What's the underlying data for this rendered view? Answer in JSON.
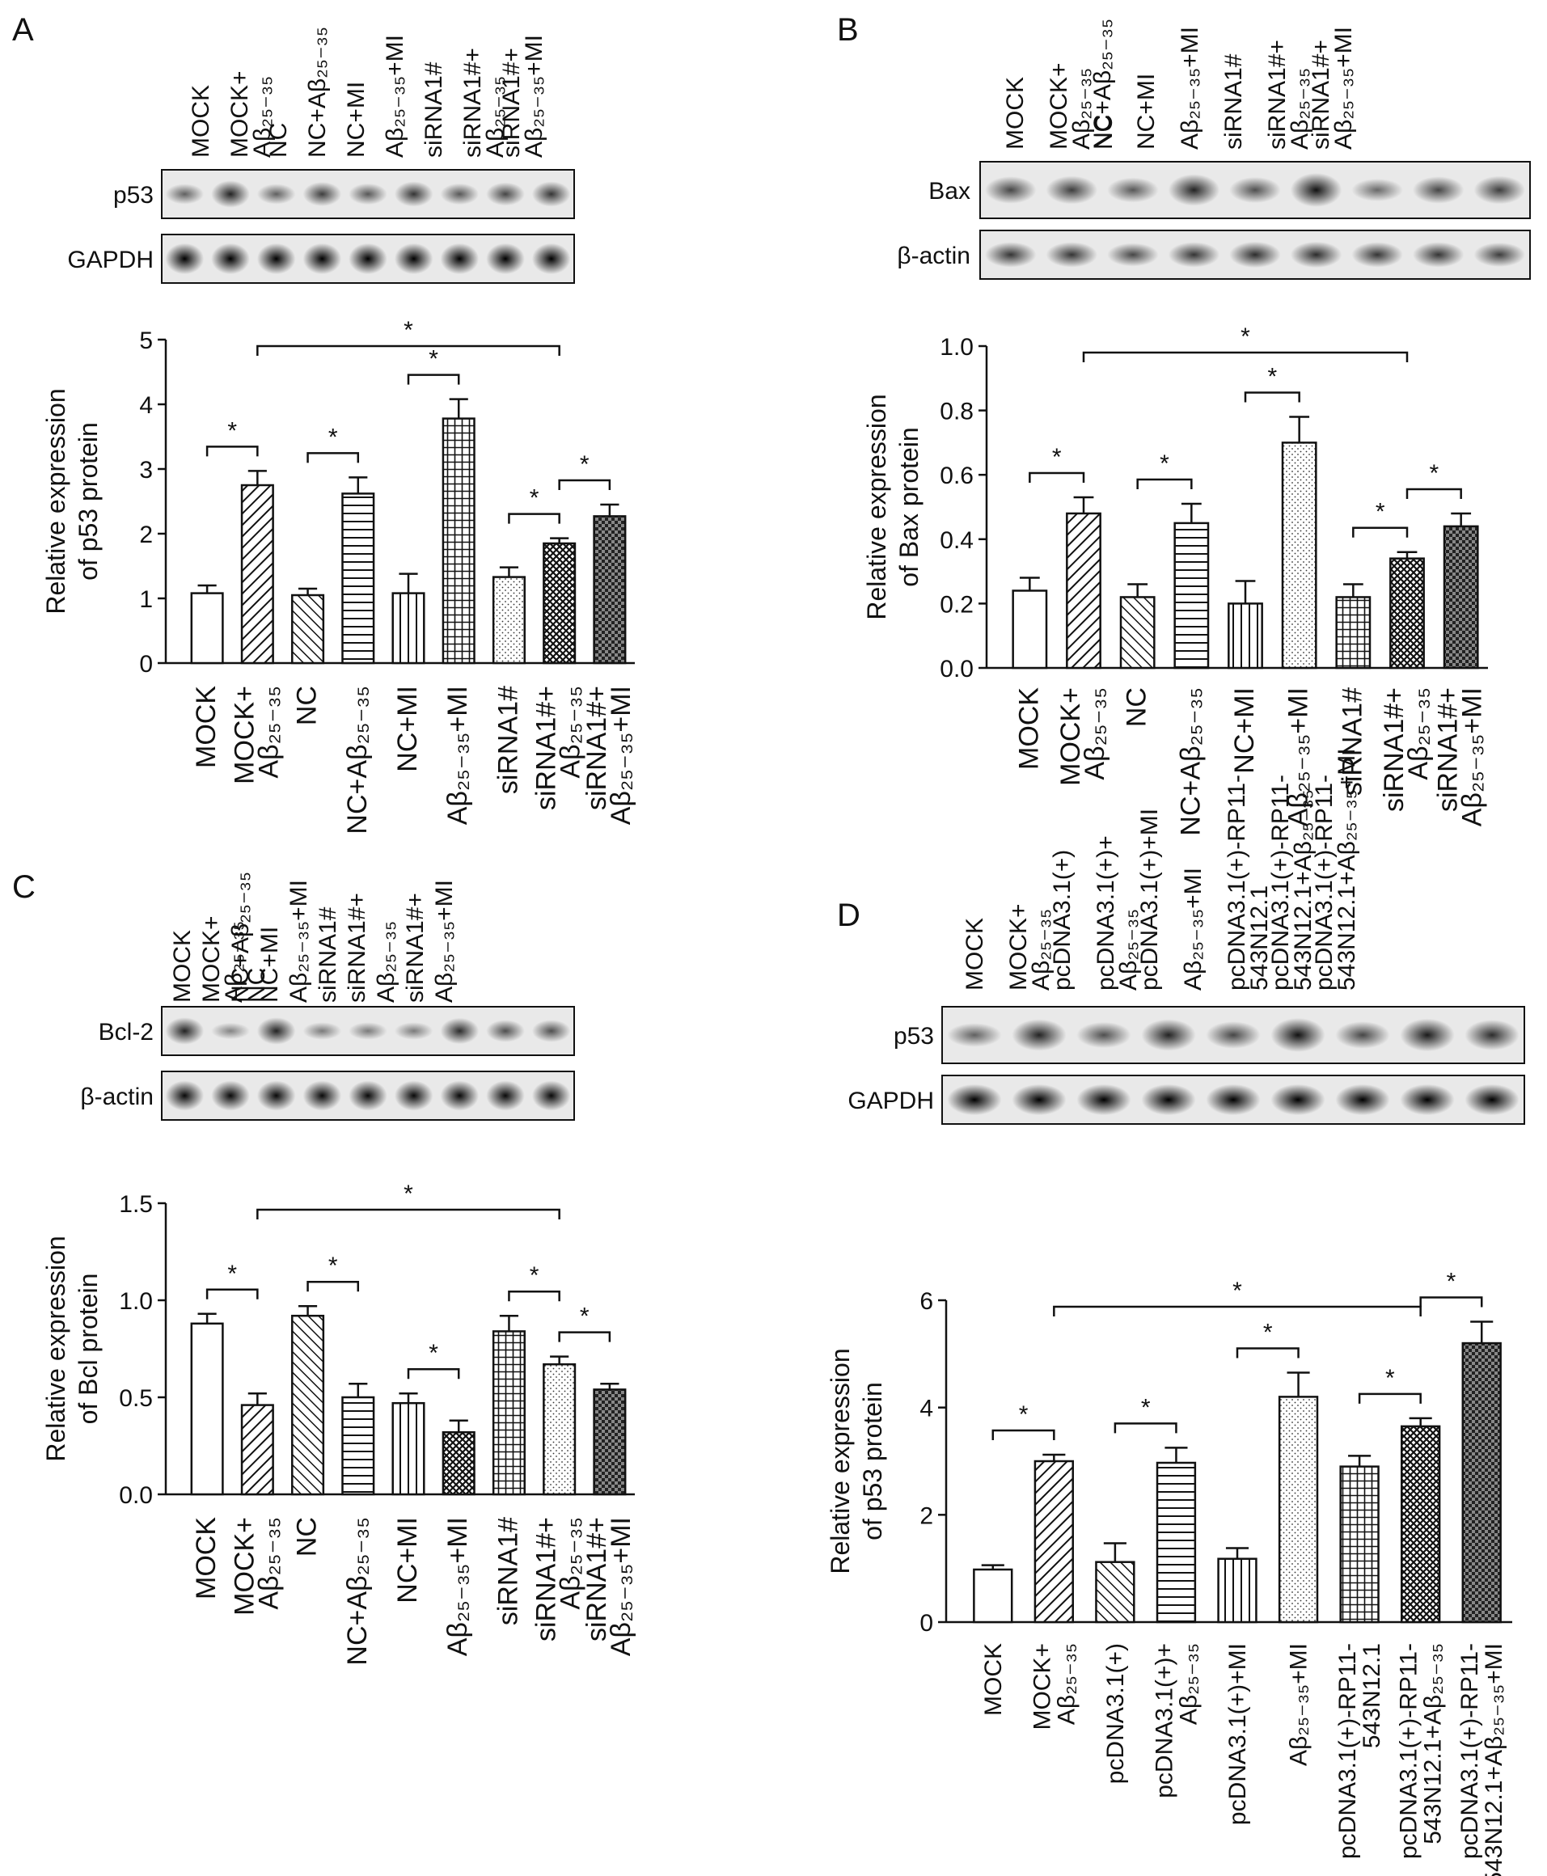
{
  "panels": [
    {
      "id": "A",
      "label": "A",
      "lanes": [
        "MOCK",
        "MOCK+ Aβ25-35",
        "NC",
        "NC+Aβ25-35",
        "NC+MI",
        "Aβ25-35+MI",
        "siRNA1#",
        "siRNA1#+ Aβ25-35",
        "siRNA1#+ Aβ25-35+MI"
      ],
      "top_lane_labels": [
        "MOCK",
        "MOCK+",
        "Aβ₂₅₋₃₅",
        "NC",
        "NC+Aβ₂₅₋₃₅",
        "NC+MI",
        "Aβ₂₅₋₃₅+MI",
        "siRNA1#",
        "siRNA1#+",
        "Aβ₂₅₋₃₅",
        "siRNA1#+",
        "Aβ₂₅₋₃₅+MI"
      ],
      "blot_rows": [
        {
          "label": "p53",
          "intensity": [
            0.45,
            0.8,
            0.45,
            0.65,
            0.5,
            0.7,
            0.5,
            0.6,
            0.7
          ]
        },
        {
          "label": "GAPDH",
          "intensity": [
            1,
            1,
            1,
            1,
            1,
            1,
            1,
            1,
            1
          ]
        }
      ],
      "chart_data": {
        "type": "bar",
        "ylabel": [
          "Relative expression",
          "of p53 protein"
        ],
        "ylim": [
          0,
          5
        ],
        "yticks": [
          "0",
          "1",
          "2",
          "3",
          "4",
          "5"
        ],
        "categories": [
          "MOCK",
          "MOCK+ Aβ25-35",
          "NC",
          "NC+Aβ25-35",
          "NC+MI",
          "Aβ25-35+MI",
          "siRNA1#",
          "siRNA1#+ Aβ25-35",
          "siRNA1#+ Aβ25-35+MI"
        ],
        "values": [
          1.08,
          2.75,
          1.05,
          2.62,
          1.08,
          3.78,
          1.33,
          1.85,
          2.27
        ],
        "errors": [
          0.12,
          0.22,
          0.1,
          0.25,
          0.3,
          0.3,
          0.15,
          0.08,
          0.18
        ],
        "patterns": [
          "none",
          "diag",
          "hatch",
          "horiz",
          "vert",
          "grid",
          "dots",
          "cross",
          "checks"
        ],
        "xtick_labels": [
          "MOCK",
          "MOCK+",
          "Aβ₂₅₋₃₅",
          "NC",
          "NC+Aβ₂₅₋₃₅",
          "NC+MI",
          "Aβ₂₅₋₃₅+MI",
          "siRNA1#",
          "siRNA1#+",
          "Aβ₂₅₋₃₅",
          "siRNA1#+",
          "Aβ₂₅₋₃₅+MI"
        ],
        "significance": [
          {
            "from": 0,
            "to": 1,
            "label": "*"
          },
          {
            "from": 2,
            "to": 3,
            "label": "*"
          },
          {
            "from": 4,
            "to": 5,
            "label": "*"
          },
          {
            "from": 6,
            "to": 7,
            "label": "*"
          },
          {
            "from": 7,
            "to": 8,
            "label": "*"
          },
          {
            "from": 1,
            "to": 7,
            "label": "*"
          }
        ]
      }
    },
    {
      "id": "B",
      "label": "B",
      "lanes": [
        "MOCK",
        "MOCK+ Aβ25-35",
        "NC",
        "NC+Aβ25-35",
        "NC+MI",
        "Aβ25-35+MI",
        "siRNA1#",
        "siRNA1#+ Aβ25-35",
        "siRNA1#+ Aβ25-35+MI"
      ],
      "top_lane_labels": [
        "MOCK",
        "MOCK+",
        "Aβ₂₅₋₃₅",
        "NC",
        "NC+Aβ₂₅₋₃₅",
        "NC+MI",
        "Aβ₂₅₋₃₅+MI",
        "siRNA1#",
        "siRNA1#+",
        "Aβ₂₅₋₃₅",
        "siRNA1#+",
        "Aβ₂₅₋₃₅+MI"
      ],
      "blot_rows": [
        {
          "label": "Bax",
          "intensity": [
            0.6,
            0.65,
            0.5,
            0.8,
            0.55,
            0.9,
            0.4,
            0.6,
            0.65
          ]
        },
        {
          "label": "β-actin",
          "intensity": [
            0.7,
            0.7,
            0.6,
            0.7,
            0.75,
            0.75,
            0.7,
            0.7,
            0.65
          ]
        }
      ],
      "chart_data": {
        "type": "bar",
        "ylabel": [
          "Relative expression",
          "of Bax protein"
        ],
        "ylim": [
          0,
          1.0
        ],
        "yticks": [
          "0.0",
          "0.2",
          "0.4",
          "0.6",
          "0.8",
          "1.0"
        ],
        "categories": [
          "MOCK",
          "MOCK+ Aβ25-35",
          "NC",
          "NC+Aβ25-35",
          "NC+MI",
          "Aβ25-35+MI",
          "siRNA1#",
          "siRNA1#+ Aβ25-35",
          "siRNA1#+ Aβ25-35+MI"
        ],
        "values": [
          0.24,
          0.48,
          0.22,
          0.45,
          0.2,
          0.7,
          0.22,
          0.34,
          0.44
        ],
        "errors": [
          0.04,
          0.05,
          0.04,
          0.06,
          0.07,
          0.08,
          0.04,
          0.02,
          0.04
        ],
        "patterns": [
          "none",
          "diag",
          "hatch",
          "horiz",
          "vert",
          "dots",
          "grid",
          "cross",
          "checks"
        ],
        "xtick_labels": [
          "MOCK",
          "MOCK+",
          "Aβ₂₅₋₃₅",
          "NC",
          "NC+Aβ₂₅₋₃₅",
          "NC+MI",
          "Aβ₂₅₋₃₅+MI",
          "siRNA1#",
          "siRNA1#+",
          "Aβ₂₅₋₃₅",
          "siRNA1#+",
          "Aβ₂₅₋₃₅+MI"
        ],
        "significance": [
          {
            "from": 0,
            "to": 1,
            "label": "*"
          },
          {
            "from": 2,
            "to": 3,
            "label": "*"
          },
          {
            "from": 4,
            "to": 5,
            "label": "*"
          },
          {
            "from": 6,
            "to": 7,
            "label": "*"
          },
          {
            "from": 7,
            "to": 8,
            "label": "*"
          },
          {
            "from": 1,
            "to": 7,
            "label": "*"
          }
        ]
      }
    },
    {
      "id": "C",
      "label": "C",
      "lanes": [
        "MOCK",
        "MOCK+ Aβ25-35",
        "NC",
        "NC+Aβ25-35",
        "NC+MI",
        "Aβ25-35+MI",
        "siRNA1#",
        "siRNA1#+ Aβ25-35",
        "siRNA1#+ Aβ25-35+MI"
      ],
      "top_lane_labels": [
        "MOCK",
        "MOCK+",
        "Aβ₂₅₋₃₅",
        "NC",
        "NC+Aβ₂₅₋₃₅",
        "NC+MI",
        "Aβ₂₅₋₃₅+MI",
        "siRNA1#",
        "siRNA1#+",
        "Aβ₂₅₋₃₅",
        "siRNA1#+",
        "Aβ₂₅₋₃₅+MI"
      ],
      "blot_rows": [
        {
          "label": "Bcl-2",
          "intensity": [
            0.8,
            0.25,
            0.8,
            0.3,
            0.3,
            0.3,
            0.75,
            0.55,
            0.55
          ]
        },
        {
          "label": "β-actin",
          "intensity": [
            0.95,
            0.95,
            0.95,
            0.95,
            0.95,
            0.95,
            0.95,
            0.95,
            0.95
          ]
        }
      ],
      "chart_data": {
        "type": "bar",
        "ylabel": [
          "Relative expression",
          "of Bcl protein"
        ],
        "ylim": [
          0,
          1.5
        ],
        "yticks": [
          "0.0",
          "0.5",
          "1.0",
          "1.5"
        ],
        "categories": [
          "MOCK",
          "MOCK+ Aβ25-35",
          "NC",
          "NC+Aβ25-35",
          "NC+MI",
          "Aβ25-35+MI",
          "siRNA1#",
          "siRNA1#+ Aβ25-35",
          "siRNA1#+ Aβ25-35+MI"
        ],
        "values": [
          0.88,
          0.46,
          0.92,
          0.5,
          0.47,
          0.32,
          0.84,
          0.67,
          0.54
        ],
        "errors": [
          0.05,
          0.06,
          0.05,
          0.07,
          0.05,
          0.06,
          0.08,
          0.04,
          0.03
        ],
        "patterns": [
          "none",
          "diag",
          "hatch",
          "horiz",
          "vert",
          "cross",
          "grid",
          "dots",
          "checks"
        ],
        "xtick_labels": [
          "MOCK",
          "MOCK+",
          "Aβ₂₅₋₃₅",
          "NC",
          "NC+Aβ₂₅₋₃₅",
          "NC+MI",
          "Aβ₂₅₋₃₅+MI",
          "siRNA1#",
          "siRNA1#+",
          "Aβ₂₅₋₃₅",
          "siRNA1#+",
          "Aβ₂₅₋₃₅+MI"
        ],
        "significance": [
          {
            "from": 0,
            "to": 1,
            "label": "*"
          },
          {
            "from": 2,
            "to": 3,
            "label": "*"
          },
          {
            "from": 4,
            "to": 5,
            "label": "*"
          },
          {
            "from": 6,
            "to": 7,
            "label": "*"
          },
          {
            "from": 7,
            "to": 8,
            "label": "*"
          },
          {
            "from": 1,
            "to": 7,
            "label": "*"
          }
        ]
      }
    },
    {
      "id": "D",
      "label": "D",
      "lanes": [
        "MOCK",
        "MOCK+ Aβ25-35",
        "pcDNA3.1(+)",
        "pcDNA3.1(+)+ Aβ25-35",
        "pcDNA3.1(+)+MI",
        "Aβ25-35+MI",
        "pcDNA3.1(+)-RP11-543N12.1",
        "pcDNA3.1(+)-RP11-543N12.1+Aβ25-35",
        "pcDNA3.1(+)-RP11-543N12.1+Aβ25-35+MI"
      ],
      "top_lane_labels": [
        "MOCK",
        "MOCK+",
        "Aβ₂₅₋₃₅",
        "pcDNA3.1(+)",
        "pcDNA3.1(+)+",
        "Aβ₂₅₋₃₅",
        "pcDNA3.1(+)+MI",
        "Aβ₂₅₋₃₅+MI",
        "pcDNA3.1(+)-RP11-",
        "543N12.1",
        "pcDNA3.1(+)-RP11-",
        "543N12.1+Aβ₂₅₋₃₅",
        "pcDNA3.1(+)-RP11-",
        "543N12.1+Aβ₂₅₋₃₅+MI"
      ],
      "blot_rows": [
        {
          "label": "p53",
          "intensity": [
            0.45,
            0.8,
            0.55,
            0.8,
            0.6,
            0.9,
            0.6,
            0.85,
            0.75
          ]
        },
        {
          "label": "GAPDH",
          "intensity": [
            1,
            1,
            1,
            1,
            1,
            1,
            1,
            1,
            1
          ]
        }
      ],
      "chart_data": {
        "type": "bar",
        "ylabel": [
          "Relative expression",
          "of p53 protein"
        ],
        "ylim": [
          0,
          6
        ],
        "yticks": [
          "0",
          "2",
          "4",
          "6"
        ],
        "categories": [
          "MOCK",
          "MOCK+ Aβ25-35",
          "pcDNA3.1(+)",
          "pcDNA3.1(+)+ Aβ25-35",
          "pcDNA3.1(+)+MI",
          "Aβ25-35+MI",
          "pcDNA3.1(+)-RP11-543N12.1",
          "pcDNA3.1(+)-RP11-543N12.1+Aβ25-35",
          "pcDNA3.1(+)-RP11-543N12.1+Aβ25-35+MI"
        ],
        "values": [
          0.98,
          3.0,
          1.12,
          2.97,
          1.18,
          4.2,
          2.9,
          3.65,
          5.2
        ],
        "errors": [
          0.08,
          0.12,
          0.35,
          0.28,
          0.2,
          0.45,
          0.2,
          0.15,
          0.4
        ],
        "patterns": [
          "none",
          "diag",
          "hatch",
          "horiz",
          "vert",
          "dots",
          "grid",
          "cross",
          "checks"
        ],
        "xtick_labels": [
          "MOCK",
          "MOCK+",
          "Aβ₂₅₋₃₅",
          "pcDNA3.1(+)",
          "pcDNA3.1(+)+",
          "Aβ₂₅₋₃₅",
          "pcDNA3.1(+)+MI",
          "Aβ₂₅₋₃₅+MI",
          "pcDNA3.1(+)-RP11-",
          "543N12.1",
          "pcDNA3.1(+)-RP11-",
          "543N12.1+Aβ₂₅₋₃₅",
          "pcDNA3.1(+)-RP11-",
          "543N12.1+Aβ₂₅₋₃₅+MI"
        ],
        "significance": [
          {
            "from": 0,
            "to": 1,
            "label": "*"
          },
          {
            "from": 2,
            "to": 3,
            "label": "*"
          },
          {
            "from": 4,
            "to": 5,
            "label": "*"
          },
          {
            "from": 6,
            "to": 7,
            "label": "*"
          },
          {
            "from": 7,
            "to": 8,
            "label": "*"
          },
          {
            "from": 1,
            "to": 7,
            "label": "*"
          }
        ]
      }
    }
  ]
}
